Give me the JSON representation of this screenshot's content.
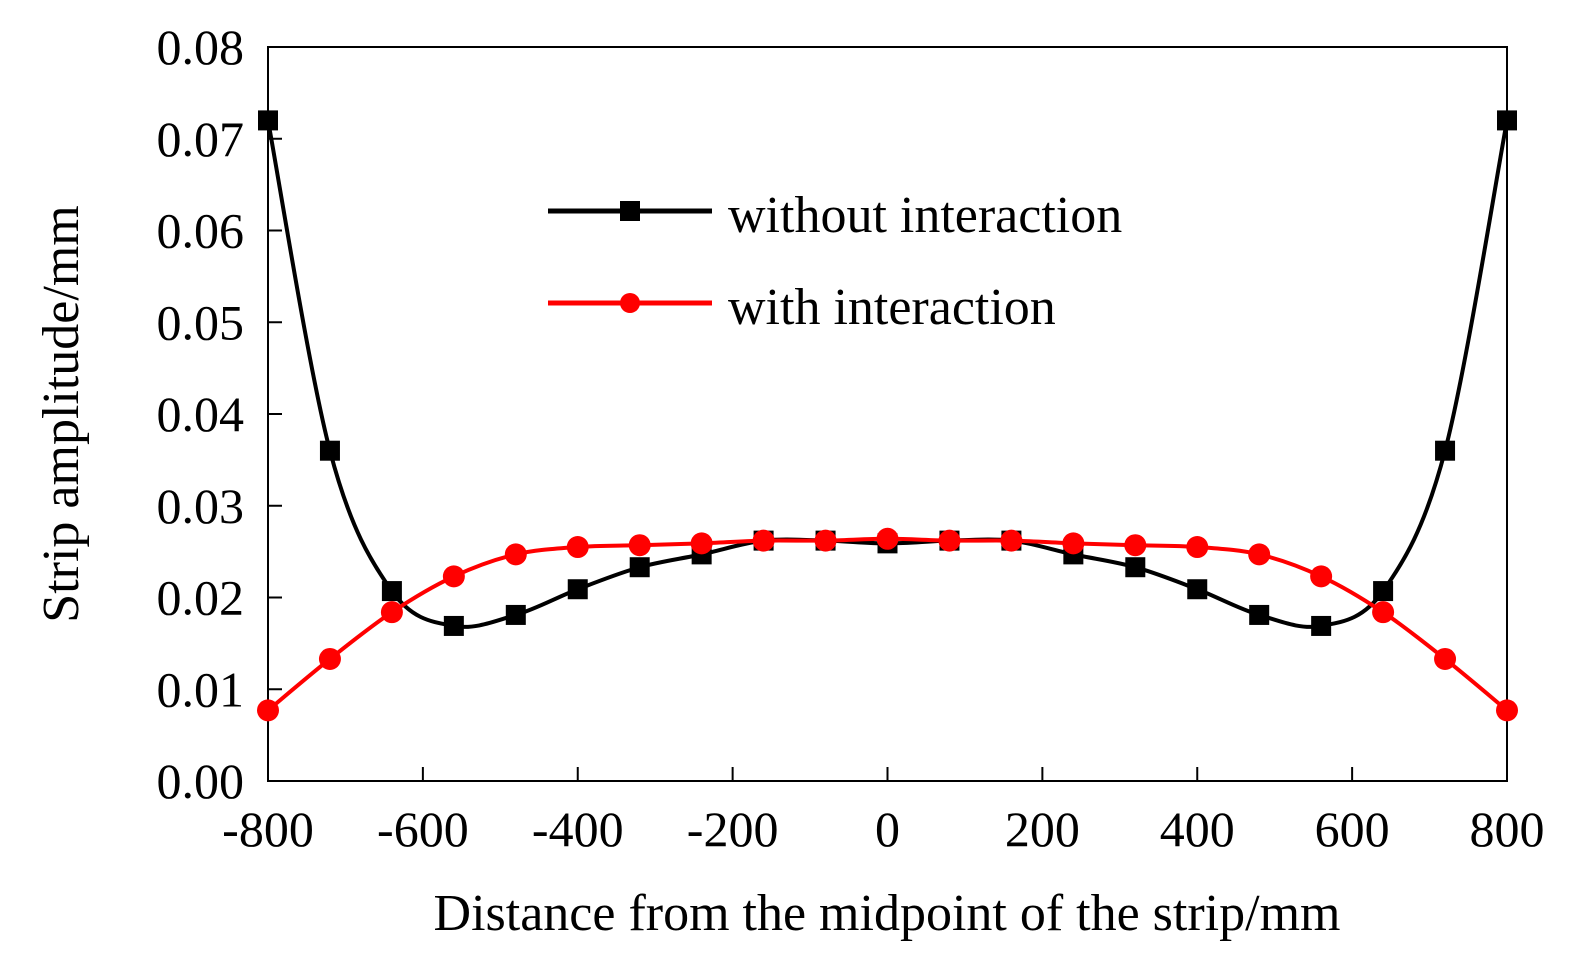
{
  "chart_data": {
    "type": "line",
    "title": "",
    "xlabel": "Distance from the midpoint of the strip/mm",
    "ylabel": "Strip amplitude/mm",
    "xlim": [
      -800,
      800
    ],
    "ylim": [
      0.0,
      0.08
    ],
    "xticks": [
      -800,
      -600,
      -400,
      -200,
      0,
      200,
      400,
      600,
      800
    ],
    "xtick_labels": [
      "-800",
      "-600",
      "-400",
      "-200",
      "0",
      "200",
      "400",
      "600",
      "800"
    ],
    "yticks": [
      0.0,
      0.01,
      0.02,
      0.03,
      0.04,
      0.05,
      0.06,
      0.07,
      0.08
    ],
    "ytick_labels": [
      "0.00",
      "0.01",
      "0.02",
      "0.03",
      "0.04",
      "0.05",
      "0.06",
      "0.07",
      "0.08"
    ],
    "grid": false,
    "legend_position": "top-center",
    "x": [
      -800,
      -720,
      -640,
      -560,
      -480,
      -400,
      -320,
      -240,
      -160,
      -80,
      0,
      80,
      160,
      240,
      320,
      400,
      480,
      560,
      640,
      720,
      800
    ],
    "series": [
      {
        "name": "without interaction",
        "color": "#000000",
        "marker": "square",
        "values": [
          0.072,
          0.036,
          0.0207,
          0.0169,
          0.0181,
          0.0209,
          0.0233,
          0.0247,
          0.0262,
          0.0262,
          0.0259,
          0.0262,
          0.0262,
          0.0247,
          0.0233,
          0.0209,
          0.0181,
          0.0169,
          0.0207,
          0.036,
          0.072
        ]
      },
      {
        "name": "with interaction",
        "color": "#ff0000",
        "marker": "circle",
        "values": [
          0.0077,
          0.0133,
          0.0184,
          0.0223,
          0.0247,
          0.0255,
          0.0257,
          0.0259,
          0.0262,
          0.0262,
          0.0264,
          0.0262,
          0.0262,
          0.0259,
          0.0257,
          0.0255,
          0.0247,
          0.0223,
          0.0184,
          0.0133,
          0.0077
        ]
      }
    ]
  }
}
